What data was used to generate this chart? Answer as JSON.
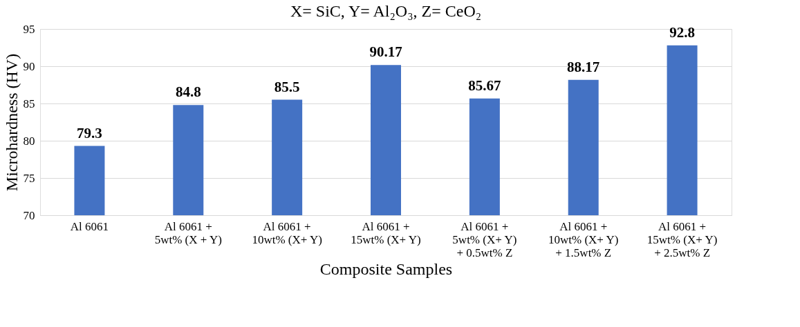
{
  "chart_data": {
    "type": "bar",
    "title": "X= SiC, Y= Al₂O₃, Z= CeO₂",
    "xlabel": "Composite Samples",
    "ylabel": "Microhardness (HV)",
    "categories": [
      "Al 6061",
      "Al 6061 +\n5wt% (X + Y)",
      "Al 6061 +\n10wt% (X+ Y)",
      "Al 6061 +\n15wt% (X+ Y)",
      "Al 6061 +\n5wt% (X+ Y)\n+ 0.5wt% Z",
      "Al 6061 +\n10wt% (X+ Y)\n+ 1.5wt% Z",
      "Al 6061 +\n15wt% (X+ Y)\n+ 2.5wt% Z"
    ],
    "values": [
      79.3,
      84.8,
      85.5,
      90.17,
      85.67,
      88.17,
      92.8
    ],
    "color": "#4472c4",
    "ylim": [
      70,
      95
    ],
    "yticks": [
      70,
      75,
      80,
      85,
      90,
      95
    ],
    "grid": "y",
    "data_labels": true
  }
}
